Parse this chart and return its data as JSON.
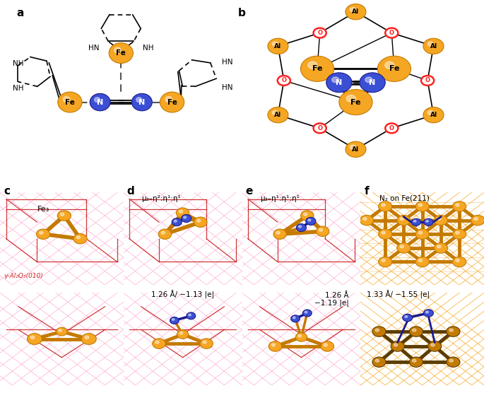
{
  "fe_color": "#F5A623",
  "n_color": "#3B4FD4",
  "o_color": "#FF2222",
  "fe_dark": "#C47A00",
  "bond_color": "#333333",
  "dashed_color": "#555555",
  "pink_color": "#FF99BB",
  "red_color": "#CC2222",
  "orange_bg": "#F5A623",
  "dark_orange": "#C47A00",
  "panel_a": "a",
  "panel_b": "b",
  "panel_c": "c",
  "panel_d": "d",
  "panel_e": "e",
  "panel_f": "f",
  "label_d": "μ₃–η²:η¹:η¹",
  "label_e": "μ₃–η¹:η¹:η¹",
  "label_f": "N₂ on Fe(211)",
  "text_fe3": "Fe₃",
  "text_support": "γ-Al₂O₃(010)",
  "text_d_val": "1.26 Å/ −1.13 |e|",
  "text_e_val1": "1.26 Å",
  "text_e_val2": "−1.19 |e|",
  "text_f_val": "1.33 Å/ −1.55 |e|",
  "bg": "#FFFFFF"
}
